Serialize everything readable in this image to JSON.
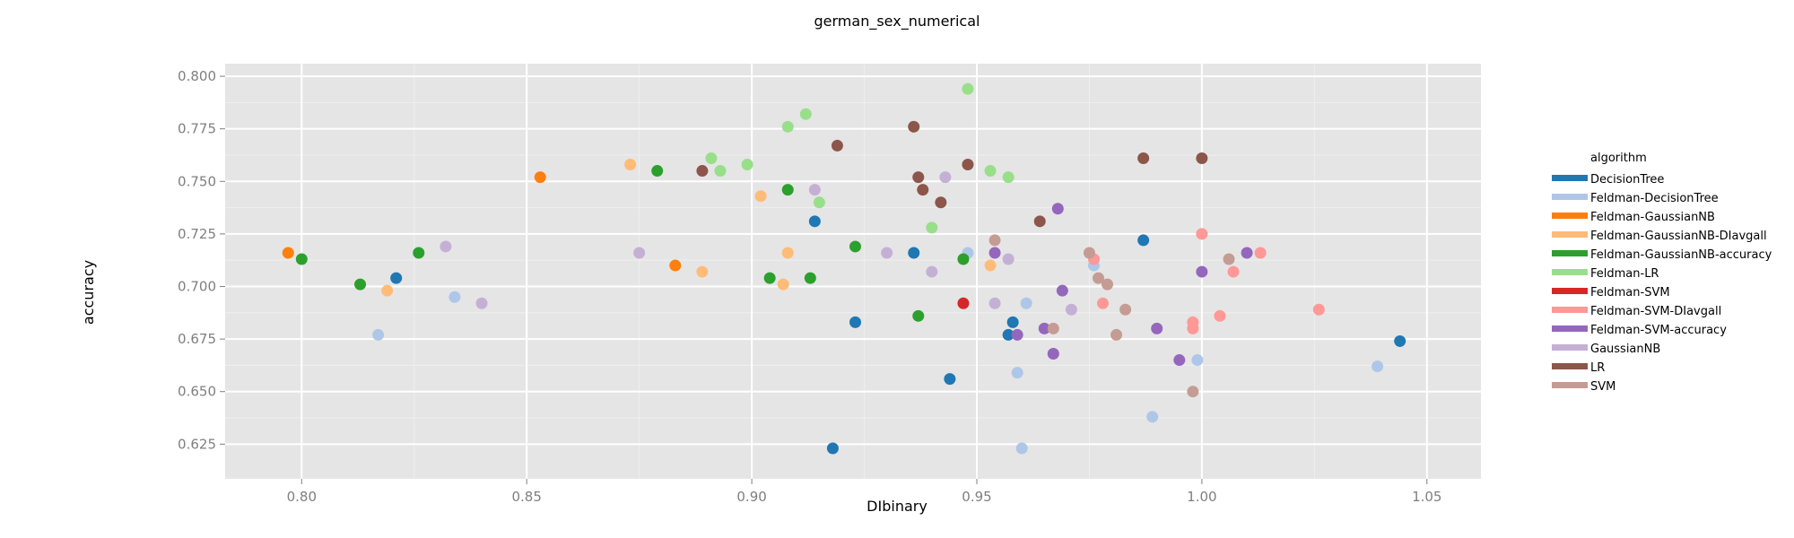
{
  "chart_data": {
    "type": "scatter",
    "title": "german_sex_numerical",
    "xlabel": "DIbinary",
    "ylabel": "accuracy",
    "xlim": [
      0.783,
      1.062
    ],
    "ylim": [
      0.6085,
      0.806
    ],
    "xticks": [
      0.8,
      0.85,
      0.9,
      0.95,
      1.0,
      1.05
    ],
    "xtick_labels": [
      "0.80",
      "0.85",
      "0.90",
      "0.95",
      "1.00",
      "1.05"
    ],
    "yticks": [
      0.625,
      0.65,
      0.675,
      0.7,
      0.725,
      0.75,
      0.775,
      0.8
    ],
    "ytick_labels": [
      "0.625",
      "0.650",
      "0.675",
      "0.700",
      "0.725",
      "0.750",
      "0.775",
      "0.800"
    ],
    "grid": true,
    "legend_position": "right",
    "legend_title": "algorithm",
    "series": [
      {
        "name": "DecisionTree",
        "color": "#1f77b4",
        "points": [
          [
            0.821,
            0.704
          ],
          [
            0.914,
            0.731
          ],
          [
            0.923,
            0.683
          ],
          [
            0.936,
            0.716
          ],
          [
            0.918,
            0.623
          ],
          [
            0.944,
            0.656
          ],
          [
            0.958,
            0.683
          ],
          [
            0.957,
            0.677
          ],
          [
            0.987,
            0.722
          ],
          [
            1.044,
            0.674
          ]
        ]
      },
      {
        "name": "Feldman-DecisionTree",
        "color": "#aec7e8",
        "points": [
          [
            0.817,
            0.677
          ],
          [
            0.834,
            0.695
          ],
          [
            0.948,
            0.716
          ],
          [
            0.961,
            0.692
          ],
          [
            0.959,
            0.659
          ],
          [
            0.96,
            0.623
          ],
          [
            0.976,
            0.71
          ],
          [
            0.989,
            0.638
          ],
          [
            0.999,
            0.665
          ],
          [
            1.039,
            0.662
          ]
        ]
      },
      {
        "name": "Feldman-GaussianNB",
        "color": "#ff7f0e",
        "points": [
          [
            0.797,
            0.716
          ],
          [
            0.853,
            0.752
          ],
          [
            0.883,
            0.71
          ]
        ]
      },
      {
        "name": "Feldman-GaussianNB-DIavgall",
        "color": "#ffbb78",
        "points": [
          [
            0.819,
            0.698
          ],
          [
            0.873,
            0.758
          ],
          [
            0.889,
            0.707
          ],
          [
            0.902,
            0.743
          ],
          [
            0.908,
            0.716
          ],
          [
            0.907,
            0.701
          ],
          [
            0.953,
            0.71
          ]
        ]
      },
      {
        "name": "Feldman-GaussianNB-accuracy",
        "color": "#2ca02c",
        "points": [
          [
            0.8,
            0.713
          ],
          [
            0.813,
            0.701
          ],
          [
            0.826,
            0.716
          ],
          [
            0.879,
            0.755
          ],
          [
            0.904,
            0.704
          ],
          [
            0.908,
            0.746
          ],
          [
            0.913,
            0.704
          ],
          [
            0.923,
            0.719
          ],
          [
            0.937,
            0.686
          ],
          [
            0.947,
            0.713
          ]
        ]
      },
      {
        "name": "Feldman-LR",
        "color": "#98df8a",
        "points": [
          [
            0.891,
            0.761
          ],
          [
            0.893,
            0.755
          ],
          [
            0.899,
            0.758
          ],
          [
            0.908,
            0.776
          ],
          [
            0.912,
            0.782
          ],
          [
            0.915,
            0.74
          ],
          [
            0.94,
            0.728
          ],
          [
            0.948,
            0.794
          ],
          [
            0.953,
            0.755
          ],
          [
            0.957,
            0.752
          ]
        ]
      },
      {
        "name": "Feldman-SVM",
        "color": "#d62728",
        "points": [
          [
            0.947,
            0.692
          ]
        ]
      },
      {
        "name": "Feldman-SVM-DIavgall",
        "color": "#ff9896",
        "points": [
          [
            0.967,
            0.668
          ],
          [
            0.976,
            0.713
          ],
          [
            0.978,
            0.692
          ],
          [
            0.998,
            0.683
          ],
          [
            0.998,
            0.68
          ],
          [
            1.0,
            0.725
          ],
          [
            1.004,
            0.686
          ],
          [
            1.007,
            0.707
          ],
          [
            1.013,
            0.716
          ],
          [
            1.026,
            0.689
          ]
        ]
      },
      {
        "name": "Feldman-SVM-accuracy",
        "color": "#9467bd",
        "points": [
          [
            0.954,
            0.716
          ],
          [
            0.959,
            0.677
          ],
          [
            0.965,
            0.68
          ],
          [
            0.967,
            0.668
          ],
          [
            0.968,
            0.737
          ],
          [
            0.969,
            0.698
          ],
          [
            0.99,
            0.68
          ],
          [
            0.995,
            0.665
          ],
          [
            1.0,
            0.707
          ],
          [
            1.01,
            0.716
          ]
        ]
      },
      {
        "name": "GaussianNB",
        "color": "#c5b0d5",
        "points": [
          [
            0.832,
            0.719
          ],
          [
            0.84,
            0.692
          ],
          [
            0.875,
            0.716
          ],
          [
            0.914,
            0.746
          ],
          [
            0.93,
            0.716
          ],
          [
            0.94,
            0.707
          ],
          [
            0.943,
            0.752
          ],
          [
            0.954,
            0.692
          ],
          [
            0.957,
            0.713
          ],
          [
            0.971,
            0.689
          ]
        ]
      },
      {
        "name": "LR",
        "color": "#8c564b",
        "points": [
          [
            0.889,
            0.755
          ],
          [
            0.919,
            0.767
          ],
          [
            0.936,
            0.776
          ],
          [
            0.937,
            0.752
          ],
          [
            0.938,
            0.746
          ],
          [
            0.942,
            0.74
          ],
          [
            0.948,
            0.758
          ],
          [
            0.964,
            0.731
          ],
          [
            0.987,
            0.761
          ],
          [
            1.0,
            0.761
          ]
        ]
      },
      {
        "name": "SVM",
        "color": "#c49c94",
        "points": [
          [
            0.954,
            0.722
          ],
          [
            0.967,
            0.68
          ],
          [
            0.975,
            0.716
          ],
          [
            0.977,
            0.704
          ],
          [
            0.979,
            0.701
          ],
          [
            0.981,
            0.677
          ],
          [
            0.983,
            0.689
          ],
          [
            0.998,
            0.65
          ],
          [
            1.006,
            0.713
          ]
        ]
      }
    ]
  }
}
